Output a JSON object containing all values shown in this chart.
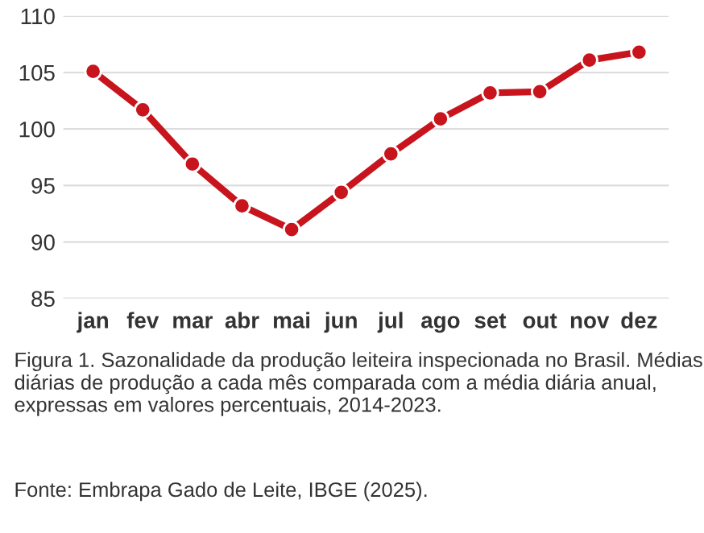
{
  "chart_data": {
    "type": "line",
    "categories": [
      "jan",
      "fev",
      "mar",
      "abr",
      "mai",
      "jun",
      "jul",
      "ago",
      "set",
      "out",
      "nov",
      "dez"
    ],
    "series": [
      {
        "color": "#c8141c",
        "values": [
          105.1,
          101.7,
          96.9,
          93.2,
          91.1,
          94.4,
          97.8,
          100.9,
          103.2,
          103.3,
          106.1,
          106.8
        ]
      }
    ],
    "ylim": [
      85,
      110
    ],
    "yticks": [
      85,
      90,
      95,
      100,
      105,
      110
    ],
    "grid": "y",
    "marker": "circle",
    "line_style": "solid",
    "legend": false,
    "annotations": [
      "Figura 1. Sazonalidade da produção leiteira inspecionada no Brasil. Médias diárias de produção a cada mês comparada com a média diária anual, expressas em valores percentuais, 2014-2023.",
      "Fonte: Embrapa Gado de Leite, IBGE (2025)."
    ]
  }
}
